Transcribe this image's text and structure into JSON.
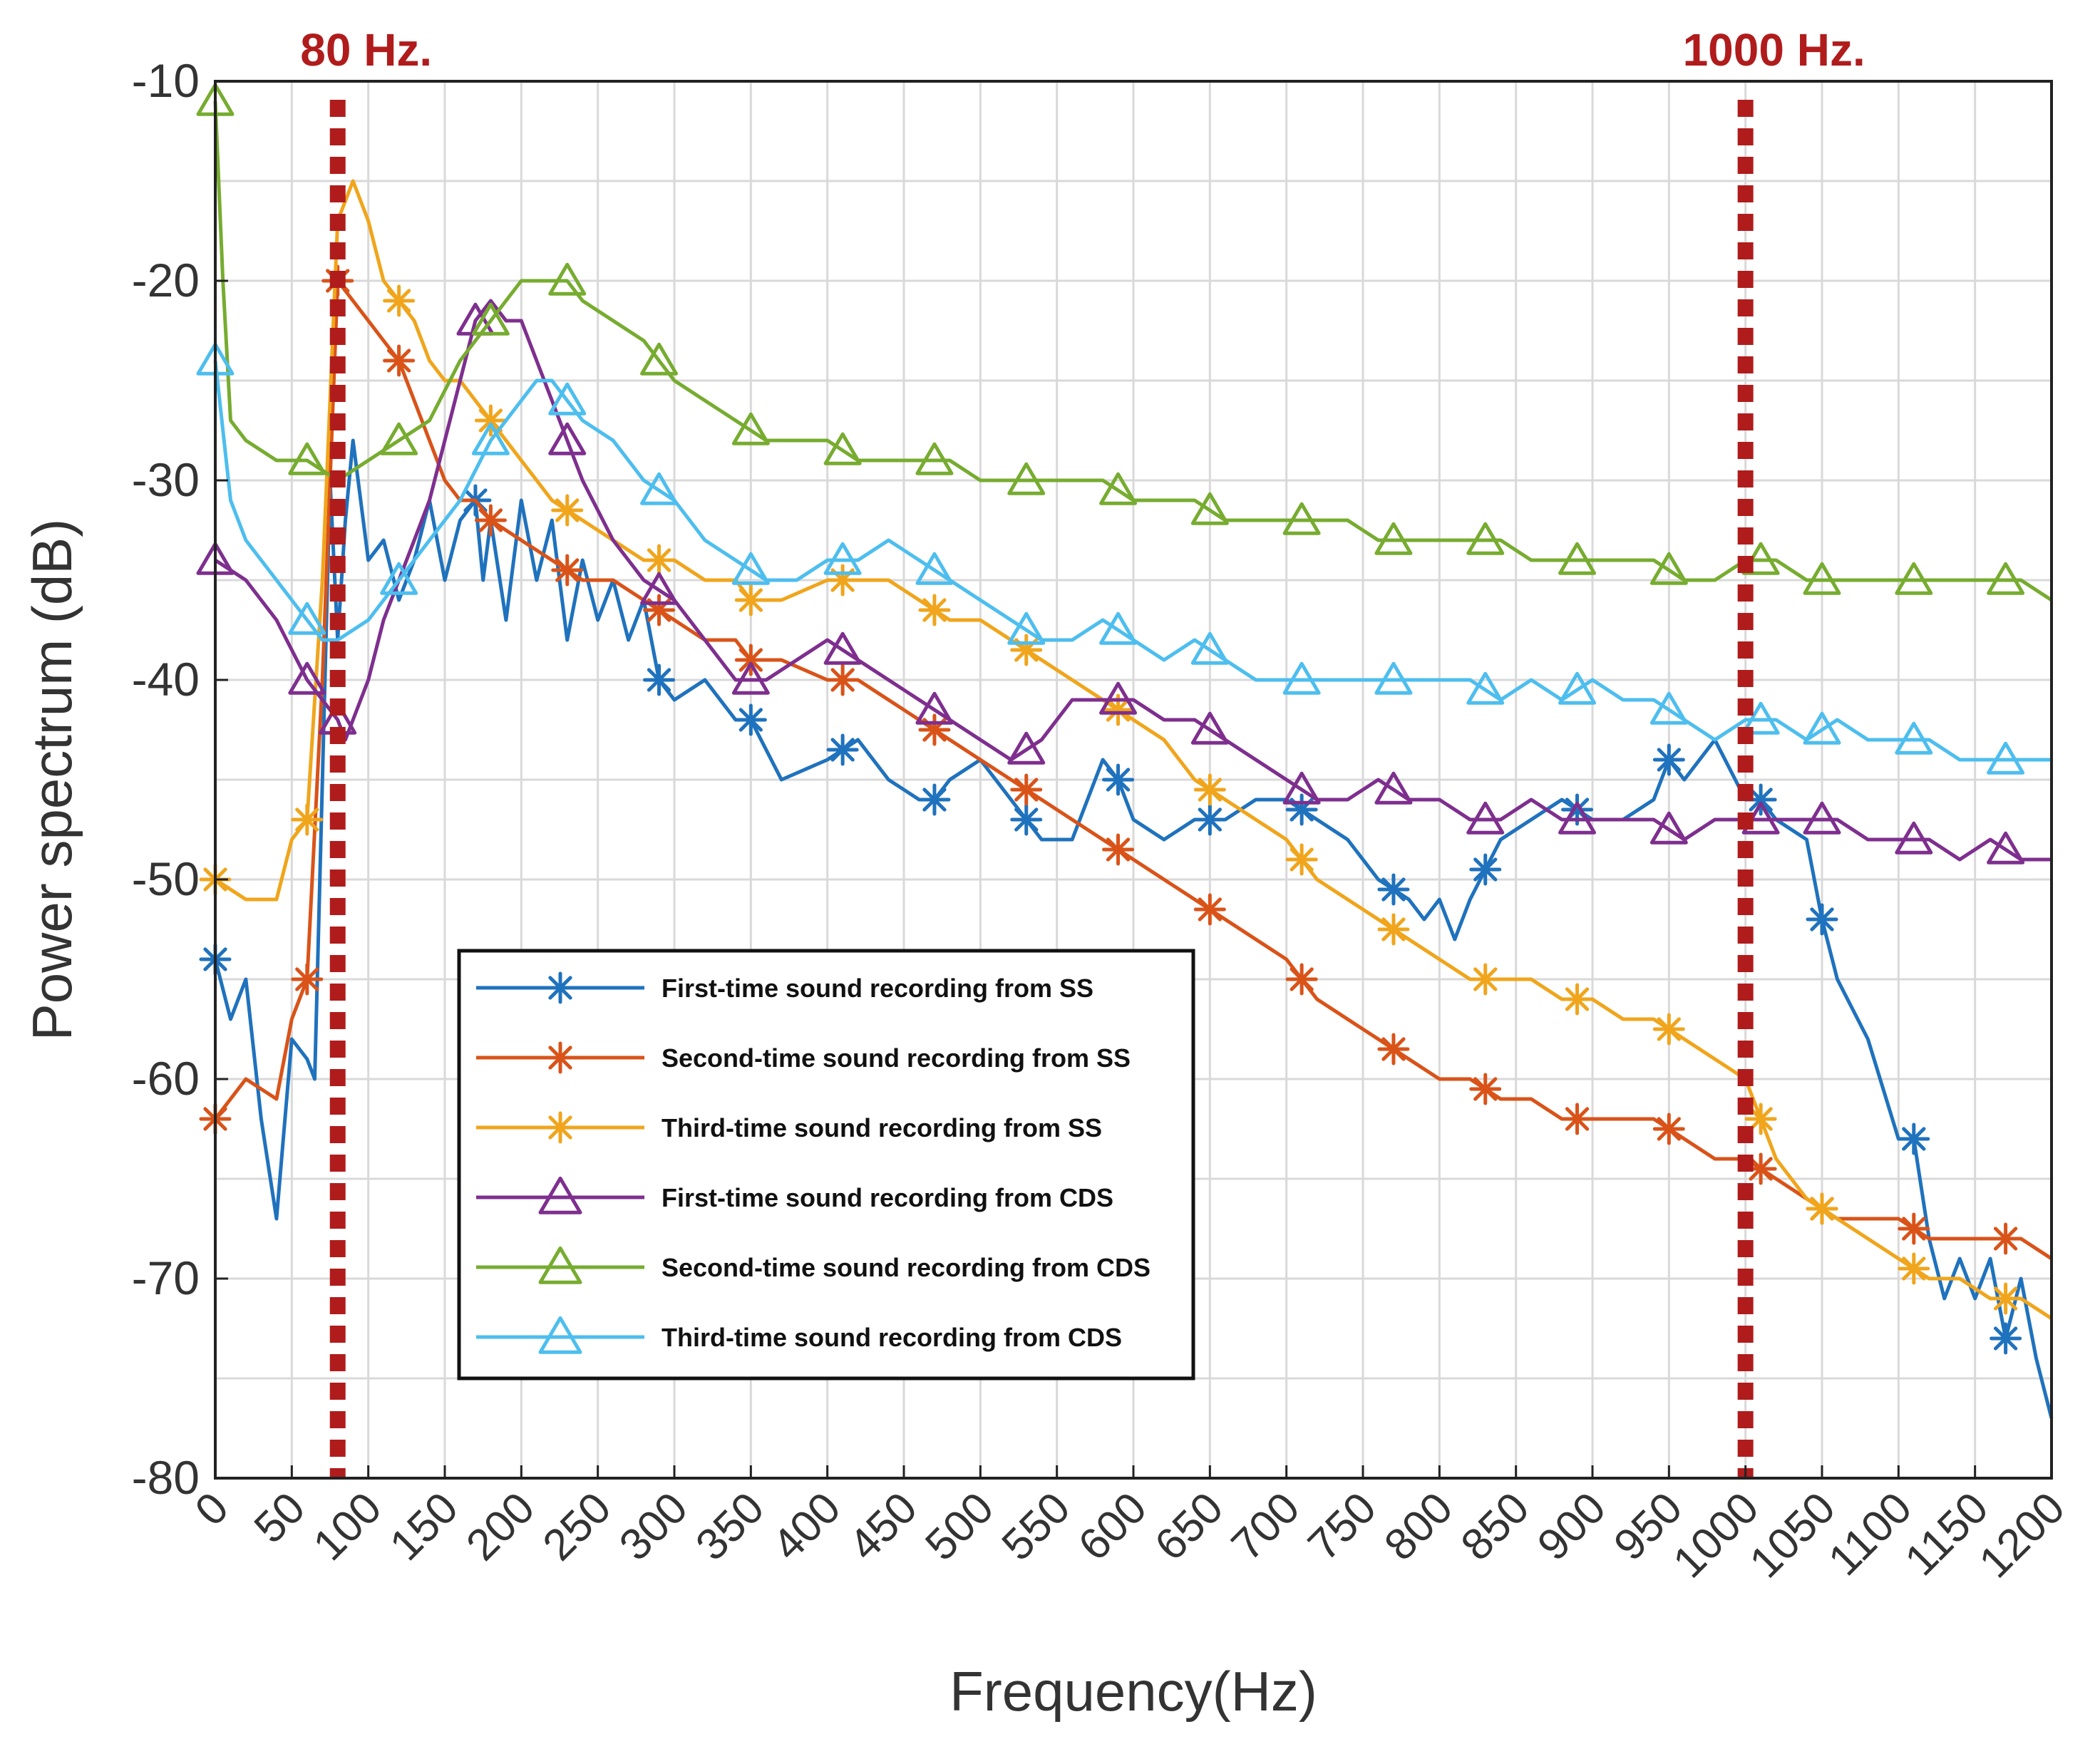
{
  "chart_data": {
    "type": "line",
    "title": "",
    "xlabel": "Frequency(Hz)",
    "ylabel": "Power spectrum (dB)",
    "xlim": [
      0,
      1200
    ],
    "ylim": [
      -80,
      -10
    ],
    "grid": true,
    "legend_position": "bottom-center",
    "x_ticks": [
      "0",
      "50",
      "100",
      "150",
      "200",
      "250",
      "300",
      "350",
      "400",
      "450",
      "500",
      "550",
      "600",
      "650",
      "700",
      "750",
      "800",
      "850",
      "900",
      "950",
      "1000",
      "1050",
      "1100",
      "1150",
      "1200"
    ],
    "y_ticks": [
      "-10",
      "-20",
      "-30",
      "-40",
      "-50",
      "-60",
      "-70",
      "-80"
    ],
    "annotations": [
      {
        "x": 80,
        "label": "80 Hz.",
        "color": "#b01c1c"
      },
      {
        "x": 1000,
        "label": "1000 Hz.",
        "color": "#b01c1c"
      }
    ],
    "series": [
      {
        "name": "First-time sound recording from SS",
        "color": "#1f72bd",
        "marker": "asterisk",
        "x": [
          0,
          10,
          20,
          30,
          40,
          50,
          60,
          65,
          70,
          75,
          80,
          85,
          90,
          100,
          110,
          120,
          130,
          140,
          150,
          160,
          170,
          175,
          180,
          190,
          200,
          210,
          220,
          230,
          240,
          250,
          260,
          270,
          280,
          290,
          300,
          320,
          340,
          350,
          370,
          400,
          420,
          440,
          460,
          470,
          480,
          500,
          520,
          530,
          540,
          560,
          580,
          590,
          600,
          620,
          640,
          660,
          680,
          700,
          720,
          740,
          760,
          780,
          790,
          800,
          810,
          820,
          840,
          860,
          880,
          900,
          920,
          940,
          950,
          960,
          980,
          1000,
          1010,
          1020,
          1040,
          1050,
          1060,
          1080,
          1100,
          1110,
          1120,
          1130,
          1140,
          1150,
          1160,
          1170,
          1180,
          1190,
          1200
        ],
        "y": [
          -54,
          -57,
          -55,
          -62,
          -67,
          -58,
          -59,
          -60,
          -45,
          -30,
          -38,
          -32,
          -28,
          -34,
          -33,
          -36,
          -34,
          -31,
          -35,
          -32,
          -31,
          -35,
          -32,
          -37,
          -31,
          -35,
          -32,
          -38,
          -34,
          -37,
          -35,
          -38,
          -36,
          -40,
          -41,
          -40,
          -42,
          -42,
          -45,
          -44,
          -43,
          -45,
          -46,
          -46,
          -45,
          -44,
          -46,
          -47,
          -48,
          -48,
          -44,
          -45,
          -47,
          -48,
          -47,
          -47,
          -46,
          -46,
          -47,
          -48,
          -50,
          -51,
          -52,
          -51,
          -53,
          -51,
          -48,
          -47,
          -46,
          -47,
          -47,
          -46,
          -44,
          -45,
          -43,
          -46,
          -46,
          -47,
          -48,
          -52,
          -55,
          -58,
          -63,
          -63,
          -68,
          -71,
          -69,
          -71,
          -69,
          -73,
          -70,
          -74,
          -77
        ],
        "markers_x": [
          0,
          170,
          290,
          350,
          410,
          470,
          530,
          590,
          650,
          710,
          770,
          830,
          890,
          950,
          1010,
          1050,
          1110,
          1170
        ]
      },
      {
        "name": "Second-time sound recording from SS",
        "color": "#d95319",
        "marker": "asterisk",
        "x": [
          0,
          20,
          40,
          50,
          60,
          70,
          80,
          90,
          100,
          110,
          120,
          130,
          140,
          150,
          160,
          170,
          180,
          200,
          220,
          240,
          260,
          280,
          300,
          320,
          340,
          350,
          370,
          400,
          420,
          440,
          460,
          480,
          500,
          520,
          540,
          560,
          580,
          600,
          620,
          640,
          660,
          680,
          700,
          720,
          740,
          760,
          780,
          800,
          820,
          840,
          860,
          880,
          900,
          920,
          940,
          960,
          980,
          1000,
          1020,
          1040,
          1060,
          1080,
          1100,
          1120,
          1140,
          1160,
          1180,
          1200
        ],
        "y": [
          -62,
          -60,
          -61,
          -57,
          -55,
          -40,
          -20,
          -21,
          -22,
          -23,
          -24,
          -26,
          -28,
          -30,
          -31,
          -31,
          -32,
          -33,
          -34,
          -35,
          -35,
          -36,
          -37,
          -38,
          -38,
          -39,
          -39,
          -40,
          -40,
          -41,
          -42,
          -43,
          -44,
          -45,
          -46,
          -47,
          -48,
          -49,
          -50,
          -51,
          -52,
          -53,
          -54,
          -56,
          -57,
          -58,
          -59,
          -60,
          -60,
          -61,
          -61,
          -62,
          -62,
          -62,
          -62,
          -63,
          -64,
          -64,
          -65,
          -66,
          -67,
          -67,
          -67,
          -68,
          -68,
          -68,
          -68,
          -69
        ],
        "markers_x": [
          0,
          60,
          80,
          120,
          180,
          230,
          290,
          350,
          410,
          470,
          530,
          590,
          650,
          710,
          770,
          830,
          890,
          950,
          1010,
          1050,
          1110,
          1170
        ]
      },
      {
        "name": "Third-time sound recording from SS",
        "color": "#f0a51c",
        "marker": "asterisk",
        "x": [
          0,
          20,
          40,
          50,
          60,
          70,
          80,
          90,
          100,
          110,
          120,
          130,
          140,
          150,
          160,
          170,
          180,
          200,
          220,
          240,
          260,
          280,
          300,
          320,
          340,
          350,
          370,
          400,
          420,
          440,
          460,
          480,
          500,
          520,
          540,
          560,
          580,
          600,
          620,
          640,
          660,
          680,
          700,
          720,
          740,
          760,
          780,
          800,
          820,
          840,
          860,
          880,
          900,
          920,
          940,
          960,
          980,
          1000,
          1020,
          1040,
          1060,
          1080,
          1100,
          1120,
          1140,
          1160,
          1180,
          1200
        ],
        "y": [
          -50,
          -51,
          -51,
          -48,
          -47,
          -35,
          -17,
          -15,
          -17,
          -20,
          -21,
          -22,
          -24,
          -25,
          -25,
          -26,
          -27,
          -29,
          -31,
          -32,
          -33,
          -34,
          -34,
          -35,
          -35,
          -36,
          -36,
          -35,
          -35,
          -35,
          -36,
          -37,
          -37,
          -38,
          -39,
          -40,
          -41,
          -42,
          -43,
          -45,
          -46,
          -47,
          -48,
          -50,
          -51,
          -52,
          -53,
          -54,
          -55,
          -55,
          -55,
          -56,
          -56,
          -57,
          -57,
          -58,
          -59,
          -60,
          -64,
          -66,
          -67,
          -68,
          -69,
          -70,
          -70,
          -71,
          -71,
          -72
        ],
        "markers_x": [
          0,
          60,
          120,
          180,
          230,
          290,
          350,
          410,
          470,
          530,
          590,
          650,
          710,
          770,
          830,
          890,
          950,
          1010,
          1050,
          1110,
          1170
        ]
      },
      {
        "name": "First-time sound recording from CDS",
        "color": "#7e2f8e",
        "marker": "triangle",
        "x": [
          0,
          20,
          40,
          60,
          70,
          80,
          85,
          90,
          100,
          110,
          120,
          130,
          140,
          150,
          160,
          170,
          180,
          190,
          200,
          210,
          220,
          230,
          240,
          260,
          280,
          300,
          320,
          340,
          360,
          380,
          400,
          420,
          440,
          460,
          480,
          500,
          520,
          540,
          560,
          580,
          600,
          620,
          640,
          660,
          680,
          700,
          720,
          740,
          760,
          780,
          800,
          820,
          840,
          860,
          880,
          900,
          920,
          940,
          960,
          980,
          1000,
          1020,
          1040,
          1060,
          1080,
          1100,
          1120,
          1140,
          1160,
          1180,
          1200
        ],
        "y": [
          -34,
          -35,
          -37,
          -40,
          -41,
          -42,
          -43,
          -42,
          -40,
          -37,
          -35,
          -33,
          -31,
          -28,
          -25,
          -22,
          -21,
          -22,
          -22,
          -24,
          -26,
          -28,
          -30,
          -33,
          -35,
          -36,
          -38,
          -40,
          -40,
          -39,
          -38,
          -39,
          -40,
          -41,
          -42,
          -43,
          -44,
          -43,
          -41,
          -41,
          -41,
          -42,
          -42,
          -43,
          -44,
          -45,
          -46,
          -46,
          -45,
          -46,
          -46,
          -47,
          -47,
          -46,
          -47,
          -47,
          -47,
          -47,
          -48,
          -47,
          -47,
          -47,
          -47,
          -47,
          -48,
          -48,
          -48,
          -49,
          -48,
          -49,
          -49
        ],
        "markers_x": [
          0,
          60,
          80,
          170,
          230,
          290,
          350,
          410,
          470,
          530,
          590,
          650,
          710,
          770,
          830,
          890,
          950,
          1010,
          1050,
          1110,
          1170
        ]
      },
      {
        "name": "Second-time sound recording from CDS",
        "color": "#77ac30",
        "marker": "triangle",
        "x": [
          0,
          5,
          10,
          20,
          40,
          60,
          80,
          100,
          120,
          140,
          160,
          170,
          180,
          200,
          210,
          220,
          230,
          240,
          260,
          280,
          300,
          320,
          340,
          360,
          380,
          400,
          420,
          440,
          460,
          480,
          500,
          520,
          540,
          560,
          580,
          600,
          620,
          640,
          660,
          680,
          700,
          720,
          740,
          760,
          780,
          800,
          820,
          840,
          860,
          880,
          900,
          920,
          940,
          960,
          980,
          1000,
          1020,
          1040,
          1060,
          1080,
          1100,
          1120,
          1140,
          1160,
          1180,
          1200
        ],
        "y": [
          -11,
          -20,
          -27,
          -28,
          -29,
          -29,
          -30,
          -29,
          -28,
          -27,
          -24,
          -23,
          -22,
          -20,
          -20,
          -20,
          -20,
          -21,
          -22,
          -23,
          -25,
          -26,
          -27,
          -28,
          -28,
          -28,
          -29,
          -29,
          -29,
          -29,
          -30,
          -30,
          -30,
          -30,
          -30,
          -31,
          -31,
          -31,
          -32,
          -32,
          -32,
          -32,
          -32,
          -33,
          -33,
          -33,
          -33,
          -33,
          -34,
          -34,
          -34,
          -34,
          -34,
          -35,
          -35,
          -34,
          -34,
          -35,
          -35,
          -35,
          -35,
          -35,
          -35,
          -35,
          -35,
          -36
        ],
        "markers_x": [
          0,
          60,
          120,
          180,
          230,
          290,
          350,
          410,
          470,
          530,
          590,
          650,
          710,
          770,
          830,
          890,
          950,
          1010,
          1050,
          1110,
          1170
        ]
      },
      {
        "name": "Third-time sound recording from CDS",
        "color": "#4dbeee",
        "marker": "triangle",
        "x": [
          0,
          10,
          20,
          40,
          60,
          70,
          80,
          100,
          120,
          140,
          160,
          180,
          200,
          210,
          220,
          230,
          240,
          260,
          280,
          300,
          320,
          340,
          360,
          380,
          400,
          420,
          440,
          460,
          480,
          500,
          520,
          540,
          560,
          580,
          600,
          620,
          640,
          660,
          680,
          700,
          720,
          740,
          760,
          780,
          800,
          820,
          840,
          860,
          880,
          900,
          920,
          940,
          960,
          980,
          1000,
          1020,
          1040,
          1060,
          1080,
          1100,
          1120,
          1140,
          1160,
          1180,
          1200
        ],
        "y": [
          -24,
          -31,
          -33,
          -35,
          -37,
          -38,
          -38,
          -37,
          -35,
          -33,
          -31,
          -28,
          -26,
          -25,
          -25,
          -26,
          -27,
          -28,
          -30,
          -31,
          -33,
          -34,
          -35,
          -35,
          -34,
          -34,
          -33,
          -34,
          -35,
          -36,
          -37,
          -38,
          -38,
          -37,
          -38,
          -39,
          -38,
          -39,
          -40,
          -40,
          -40,
          -40,
          -40,
          -40,
          -40,
          -40,
          -41,
          -40,
          -41,
          -40,
          -41,
          -41,
          -42,
          -43,
          -42,
          -42,
          -43,
          -42,
          -43,
          -43,
          -43,
          -44,
          -44,
          -44,
          -44
        ],
        "markers_x": [
          0,
          60,
          120,
          180,
          230,
          290,
          350,
          410,
          470,
          530,
          590,
          650,
          710,
          770,
          830,
          890,
          950,
          1010,
          1050,
          1110,
          1170
        ]
      }
    ]
  }
}
